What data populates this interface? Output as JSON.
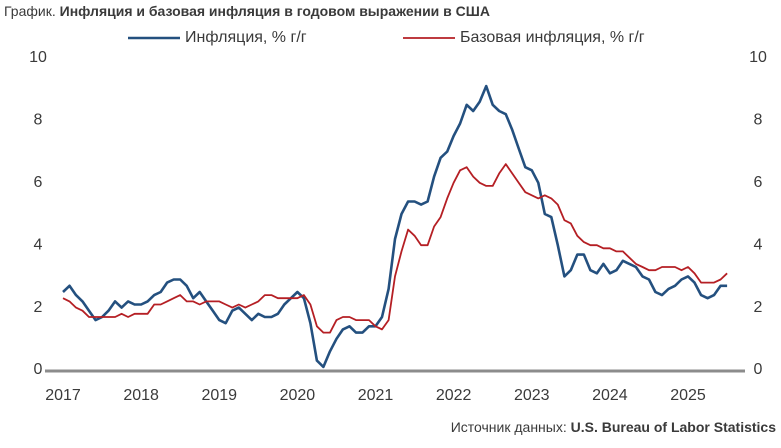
{
  "chart_data": {
    "type": "line",
    "title_prefix": "График.",
    "title": "Инфляция и базовая инфляция в годовом выражении в США",
    "source_prefix": "Источник данных:",
    "source": "U.S. Bureau of Labor Statistics",
    "x": [
      2017.0,
      2017.083,
      2017.167,
      2017.25,
      2017.333,
      2017.417,
      2017.5,
      2017.583,
      2017.667,
      2017.75,
      2017.833,
      2017.917,
      2018.0,
      2018.083,
      2018.167,
      2018.25,
      2018.333,
      2018.417,
      2018.5,
      2018.583,
      2018.667,
      2018.75,
      2018.833,
      2018.917,
      2019.0,
      2019.083,
      2019.167,
      2019.25,
      2019.333,
      2019.417,
      2019.5,
      2019.583,
      2019.667,
      2019.75,
      2019.833,
      2019.917,
      2020.0,
      2020.083,
      2020.167,
      2020.25,
      2020.333,
      2020.417,
      2020.5,
      2020.583,
      2020.667,
      2020.75,
      2020.833,
      2020.917,
      2021.0,
      2021.083,
      2021.167,
      2021.25,
      2021.333,
      2021.417,
      2021.5,
      2021.583,
      2021.667,
      2021.75,
      2021.833,
      2021.917,
      2022.0,
      2022.083,
      2022.167,
      2022.25,
      2022.333,
      2022.417,
      2022.5,
      2022.583,
      2022.667,
      2022.75,
      2022.833,
      2022.917,
      2023.0,
      2023.083,
      2023.167,
      2023.25,
      2023.333,
      2023.417,
      2023.5,
      2023.583,
      2023.667,
      2023.75,
      2023.833,
      2023.917,
      2024.0,
      2024.083,
      2024.167,
      2024.25,
      2024.333,
      2024.417,
      2024.5,
      2024.583,
      2024.667,
      2024.75,
      2024.833,
      2024.917,
      2025.0,
      2025.083,
      2025.167,
      2025.25,
      2025.333,
      2025.417,
      2025.5
    ],
    "series": [
      {
        "name": "Инфляция, % г/г",
        "color": "#24507f",
        "values": [
          2.5,
          2.7,
          2.4,
          2.2,
          1.9,
          1.6,
          1.7,
          1.9,
          2.2,
          2.0,
          2.2,
          2.1,
          2.1,
          2.2,
          2.4,
          2.5,
          2.8,
          2.9,
          2.9,
          2.7,
          2.3,
          2.5,
          2.2,
          1.9,
          1.6,
          1.5,
          1.9,
          2.0,
          1.8,
          1.6,
          1.8,
          1.7,
          1.7,
          1.8,
          2.1,
          2.3,
          2.5,
          2.3,
          1.5,
          0.3,
          0.1,
          0.6,
          1.0,
          1.3,
          1.4,
          1.2,
          1.2,
          1.4,
          1.4,
          1.7,
          2.6,
          4.2,
          5.0,
          5.4,
          5.4,
          5.3,
          5.4,
          6.2,
          6.8,
          7.0,
          7.5,
          7.9,
          8.5,
          8.3,
          8.6,
          9.1,
          8.5,
          8.3,
          8.2,
          7.7,
          7.1,
          6.5,
          6.4,
          6.0,
          5.0,
          4.9,
          4.0,
          3.0,
          3.2,
          3.7,
          3.7,
          3.2,
          3.1,
          3.4,
          3.1,
          3.2,
          3.5,
          3.4,
          3.3,
          3.0,
          2.9,
          2.5,
          2.4,
          2.6,
          2.7,
          2.9,
          3.0,
          2.8,
          2.4,
          2.3,
          2.4,
          2.7,
          2.7
        ]
      },
      {
        "name": "Базовая инфляция, % г/г",
        "color": "#b51f24",
        "values": [
          2.3,
          2.2,
          2.0,
          1.9,
          1.7,
          1.7,
          1.7,
          1.7,
          1.7,
          1.8,
          1.7,
          1.8,
          1.8,
          1.8,
          2.1,
          2.1,
          2.2,
          2.3,
          2.4,
          2.2,
          2.2,
          2.1,
          2.2,
          2.2,
          2.2,
          2.1,
          2.0,
          2.1,
          2.0,
          2.1,
          2.2,
          2.4,
          2.4,
          2.3,
          2.3,
          2.3,
          2.3,
          2.4,
          2.1,
          1.4,
          1.2,
          1.2,
          1.6,
          1.7,
          1.7,
          1.6,
          1.6,
          1.6,
          1.4,
          1.3,
          1.6,
          3.0,
          3.8,
          4.5,
          4.3,
          4.0,
          4.0,
          4.6,
          4.9,
          5.5,
          6.0,
          6.4,
          6.5,
          6.2,
          6.0,
          5.9,
          5.9,
          6.3,
          6.6,
          6.3,
          6.0,
          5.7,
          5.6,
          5.5,
          5.6,
          5.5,
          5.3,
          4.8,
          4.7,
          4.3,
          4.1,
          4.0,
          4.0,
          3.9,
          3.9,
          3.8,
          3.8,
          3.6,
          3.4,
          3.3,
          3.2,
          3.2,
          3.3,
          3.3,
          3.3,
          3.2,
          3.3,
          3.1,
          2.8,
          2.8,
          2.8,
          2.9,
          3.1
        ]
      }
    ],
    "xlim": [
      2017,
      2025.55
    ],
    "xticks": [
      2017,
      2018,
      2019,
      2020,
      2021,
      2022,
      2023,
      2024,
      2025
    ],
    "ylim": [
      0,
      10
    ],
    "yticks": [
      0,
      2,
      4,
      6,
      8,
      10
    ],
    "y2lim": [
      0,
      10
    ],
    "y2ticks": [
      0,
      2,
      4,
      6,
      8,
      10
    ],
    "grid": false,
    "legend": "top"
  }
}
